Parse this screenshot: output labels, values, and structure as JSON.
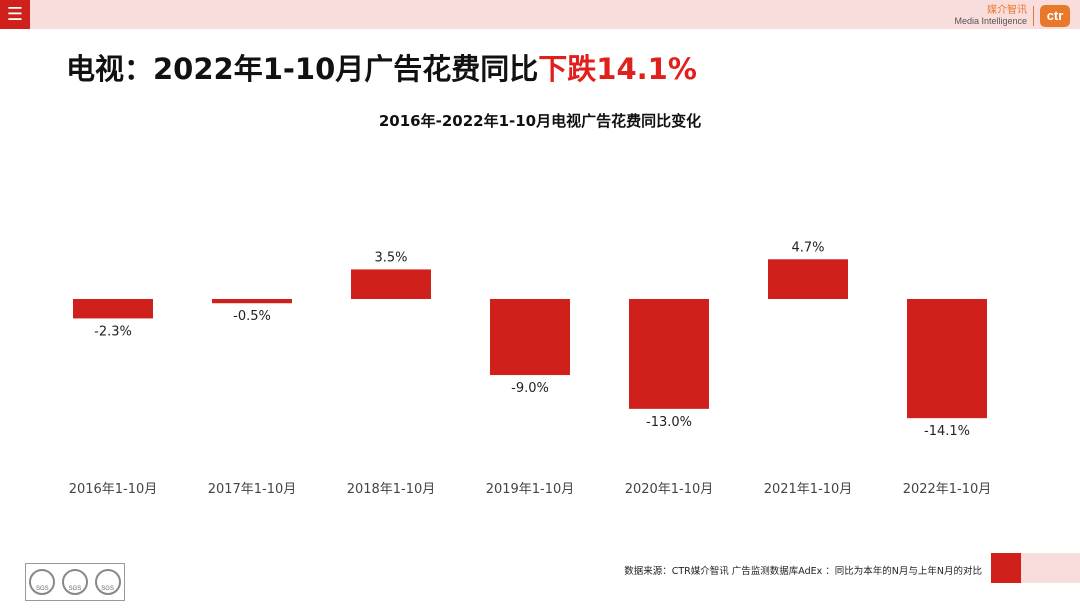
{
  "header": {
    "menu_icon": "☰",
    "brand_cn": "媒介智讯",
    "brand_en": "Media Intelligence",
    "brand_logo": "ctr",
    "brand_color": "#e8792b"
  },
  "headline": {
    "part1": "电视：2022年1-10月广告花费同比",
    "part2": "下跌14.1%"
  },
  "chart_data": {
    "type": "bar",
    "title": "2016年-2022年1-10月电视广告花费同比变化",
    "categories": [
      "2016年1-10月",
      "2017年1-10月",
      "2018年1-10月",
      "2019年1-10月",
      "2020年1-10月",
      "2021年1-10月",
      "2022年1-10月"
    ],
    "values": [
      -2.3,
      -0.5,
      3.5,
      -9.0,
      -13.0,
      4.7,
      -14.1
    ],
    "data_labels": [
      "-2.3%",
      "-0.5%",
      "3.5%",
      "-9.0%",
      "-13.0%",
      "4.7%",
      "-14.1%"
    ],
    "unit": "%",
    "xlabel": "",
    "ylabel": "",
    "ylim": [
      -15,
      5
    ],
    "grid": false,
    "bar_color": "#d0201c"
  },
  "footer": {
    "source": "数据来源：CTR媒介智讯 广告监测数据库AdEx  ：同比为本年的N月与上年N月的对比",
    "cert_label": "SGS"
  }
}
